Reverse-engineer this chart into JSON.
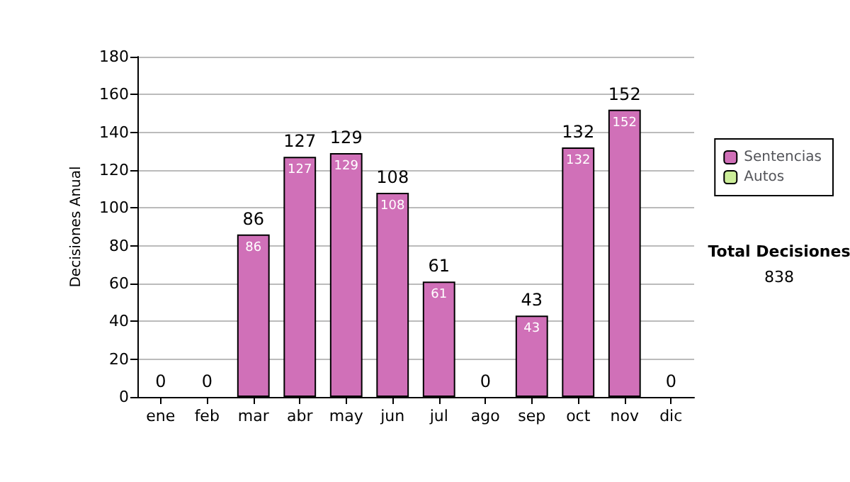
{
  "chart_data": {
    "type": "bar",
    "ylabel": "Decisiones Anual",
    "categories": [
      "ene",
      "feb",
      "mar",
      "abr",
      "may",
      "jun",
      "jul",
      "ago",
      "sep",
      "oct",
      "nov",
      "dic"
    ],
    "series": [
      {
        "name": "Sentencias",
        "color": "#d070b8",
        "values": [
          0,
          0,
          86,
          127,
          129,
          108,
          61,
          0,
          43,
          132,
          152,
          0
        ],
        "value_labels": [
          null,
          null,
          "86",
          "127",
          "129",
          "108",
          "61",
          null,
          "43",
          "132",
          "152",
          null
        ]
      },
      {
        "name": "Autos",
        "color": "#ccee99",
        "values": [
          0,
          0,
          0,
          0,
          0,
          0,
          0,
          0,
          0,
          0,
          0,
          0
        ]
      }
    ],
    "stacked": true,
    "totals": [
      "0",
      "0",
      "86",
      "127",
      "129",
      "108",
      "61",
      "0",
      "43",
      "132",
      "152",
      "0"
    ],
    "ylim": [
      0,
      180
    ],
    "yticks": [
      0,
      20,
      40,
      60,
      80,
      100,
      120,
      140,
      160,
      180
    ],
    "grid": "y",
    "legend": "right",
    "annotations": [
      "Total Decisiones",
      "838"
    ]
  }
}
